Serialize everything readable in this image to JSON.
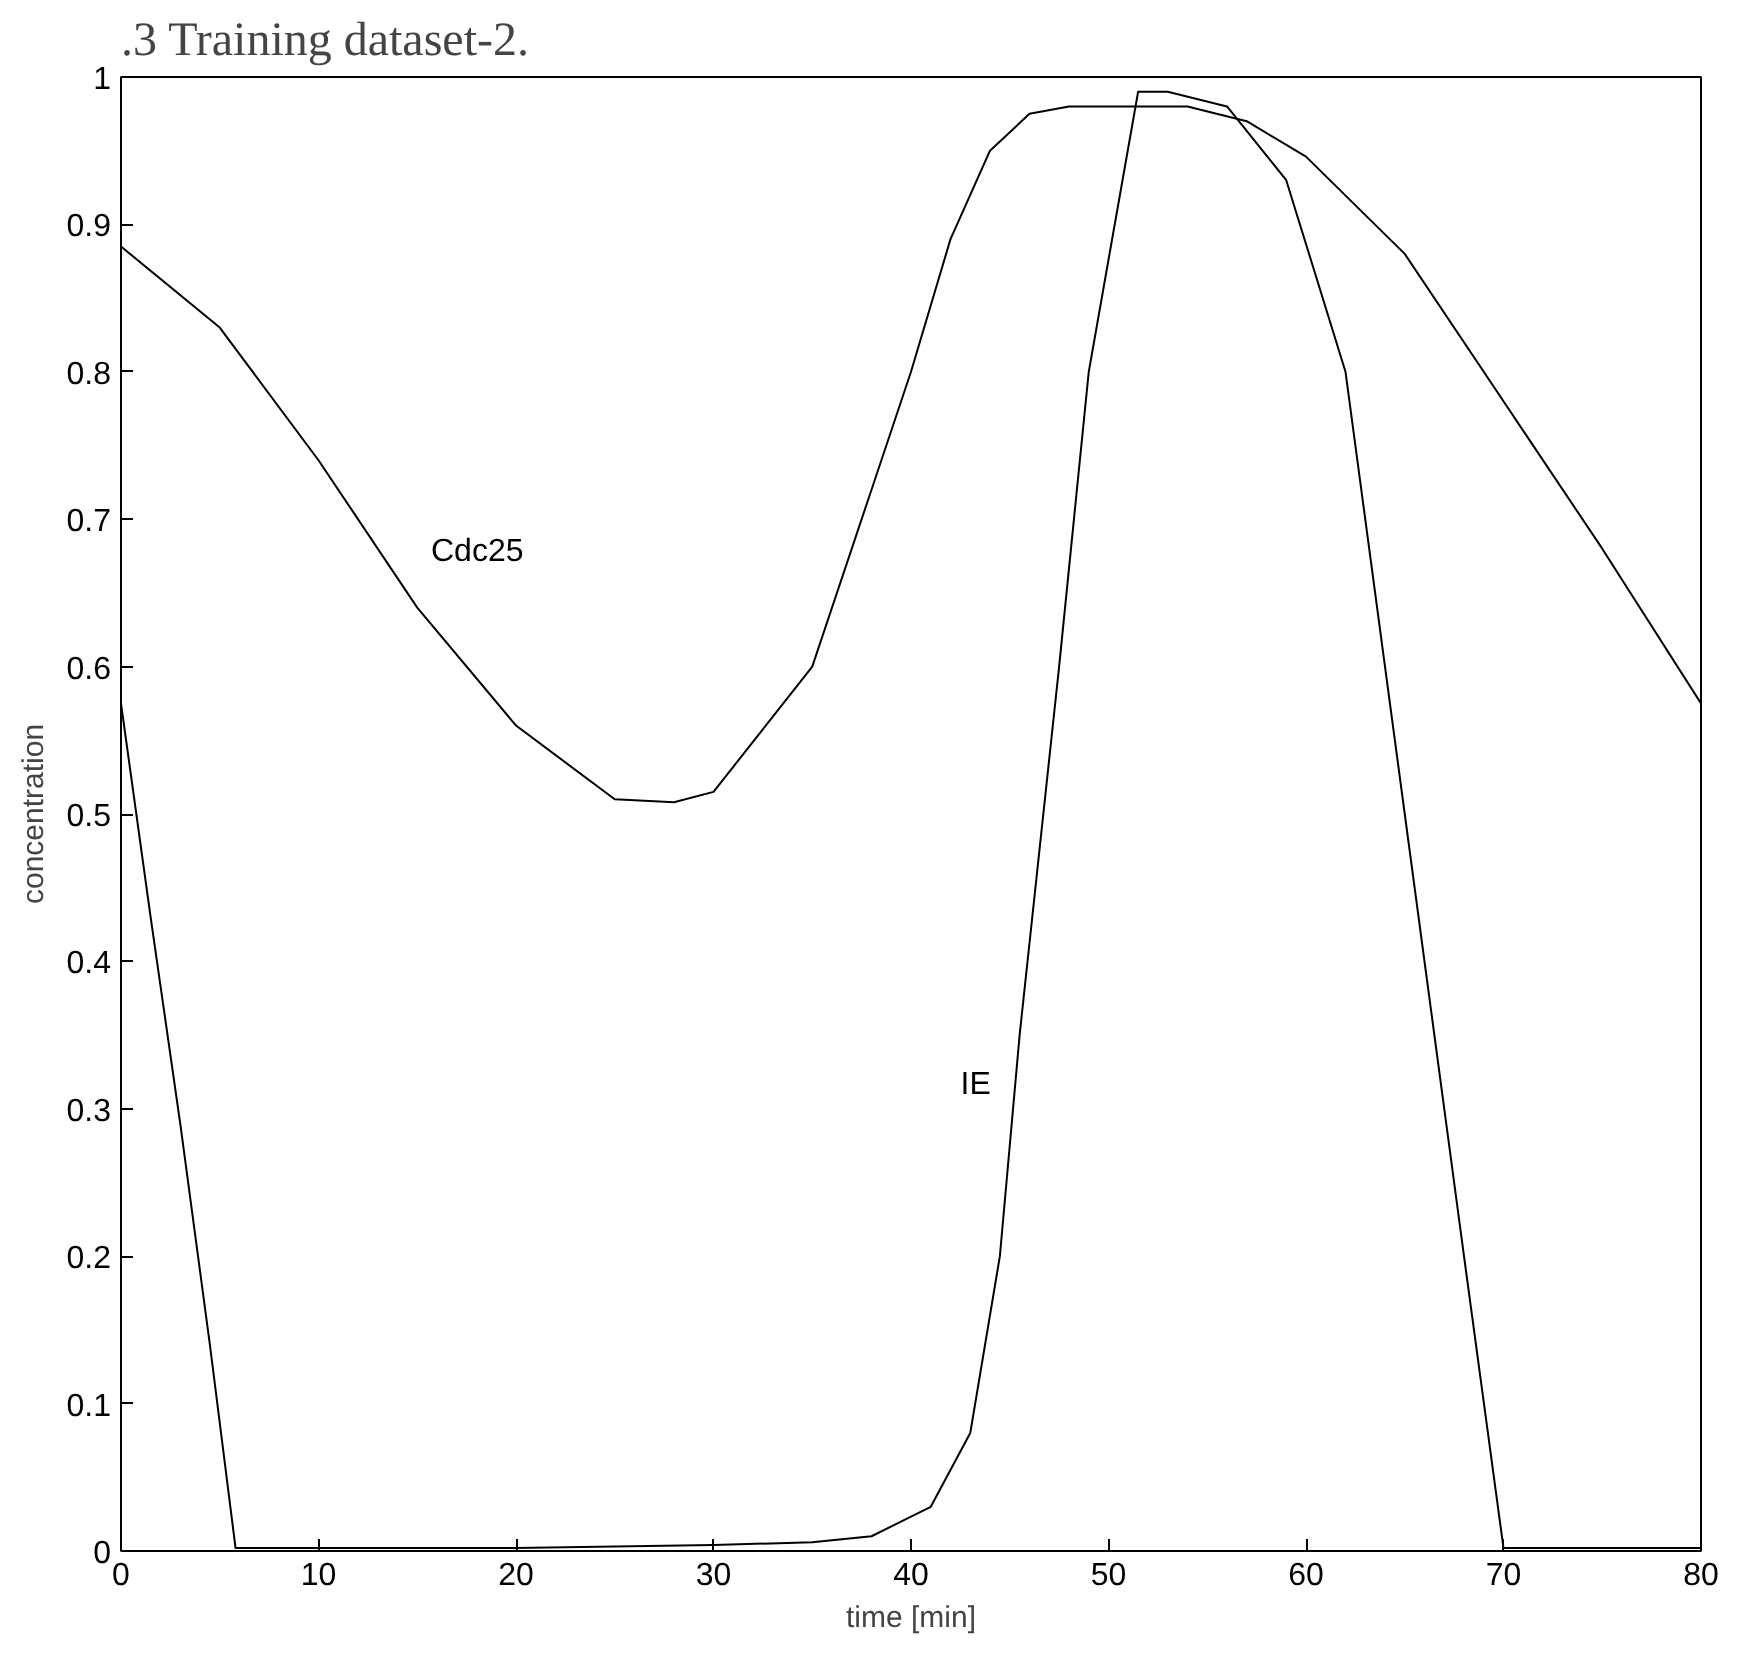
{
  "chart_data": {
    "type": "line",
    "title": ".3 Training dataset-2.",
    "xlabel": "time [min]",
    "ylabel": "concentration",
    "xlim": [
      0,
      80
    ],
    "ylim": [
      0,
      1
    ],
    "xticks": [
      0,
      10,
      20,
      30,
      40,
      50,
      60,
      70,
      80
    ],
    "yticks": [
      0,
      0.1,
      0.2,
      0.3,
      0.4,
      0.5,
      0.6,
      0.7,
      0.8,
      0.9,
      1
    ],
    "grid": false,
    "legend": false,
    "series": [
      {
        "name": "Cdc25",
        "color": "#000000",
        "x": [
          0,
          5,
          10,
          15,
          20,
          25,
          28,
          30,
          35,
          38,
          40,
          42,
          44,
          46,
          48,
          50,
          54,
          57,
          60,
          65,
          70,
          75,
          80
        ],
        "values": [
          0.885,
          0.83,
          0.74,
          0.64,
          0.56,
          0.51,
          0.508,
          0.515,
          0.6,
          0.72,
          0.8,
          0.89,
          0.95,
          0.975,
          0.98,
          0.98,
          0.98,
          0.97,
          0.946,
          0.88,
          0.78,
          0.68,
          0.575
        ]
      },
      {
        "name": "IE",
        "color": "#000000",
        "x": [
          0,
          1.5,
          3,
          4.5,
          5.8,
          10,
          20,
          30,
          35,
          38,
          41,
          43,
          44.5,
          45.5,
          47.5,
          49,
          51.5,
          53,
          56,
          59,
          62,
          65,
          68,
          70,
          80
        ],
        "values": [
          0.575,
          0.43,
          0.29,
          0.14,
          0.002,
          0.002,
          0.002,
          0.004,
          0.006,
          0.01,
          0.03,
          0.08,
          0.2,
          0.35,
          0.6,
          0.8,
          0.99,
          0.99,
          0.98,
          0.93,
          0.8,
          0.5,
          0.2,
          0.002,
          0.002
        ]
      }
    ]
  }
}
